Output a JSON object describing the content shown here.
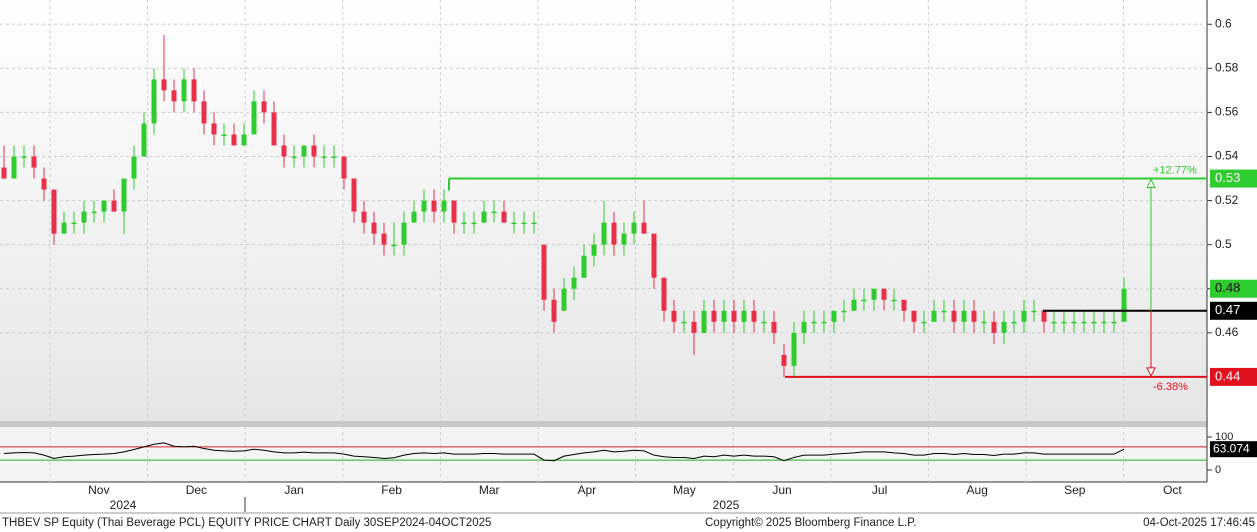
{
  "chart_data": {
    "type": "candlestick",
    "title": "THBEV SP Equity (Thai Beverage PCL) EQUITY PRICE CHART Daily 30SEP2024-04OCT2025",
    "copyright": "Copyright© 2025 Bloomberg Finance L.P.",
    "timestamp": "04-Oct-2025 17:46:45",
    "months": [
      "Nov",
      "Dec",
      "Jan",
      "Feb",
      "Mar",
      "Apr",
      "May",
      "Jun",
      "Jul",
      "Aug",
      "Sep",
      "Oct"
    ],
    "years": [
      "2024",
      "2025"
    ],
    "open": [
      0.535,
      0.53,
      0.54,
      0.54,
      0.53,
      0.525,
      0.505,
      0.51,
      0.51,
      0.515,
      0.515,
      0.52,
      0.515,
      0.53,
      0.54,
      0.555,
      0.575,
      0.57,
      0.565,
      0.575,
      0.565,
      0.555,
      0.55,
      0.55,
      0.545,
      0.55,
      0.565,
      0.56,
      0.545,
      0.54,
      0.54,
      0.545,
      0.54,
      0.54,
      0.54,
      0.53,
      0.515,
      0.51,
      0.505,
      0.5,
      0.5,
      0.51,
      0.515,
      0.52,
      0.515,
      0.52,
      0.51,
      0.51,
      0.51,
      0.515,
      0.515,
      0.51,
      0.51,
      0.51,
      0.5,
      0.475,
      0.47,
      0.48,
      0.485,
      0.495,
      0.5,
      0.51,
      0.5,
      0.505,
      0.51,
      0.505,
      0.485,
      0.47,
      0.465,
      0.465,
      0.46,
      0.47,
      0.465,
      0.47,
      0.465,
      0.47,
      0.465,
      0.465,
      0.45,
      0.445,
      0.46,
      0.465,
      0.465,
      0.465,
      0.47,
      0.47,
      0.475,
      0.475,
      0.48,
      0.475,
      0.475,
      0.47,
      0.465,
      0.465,
      0.47,
      0.47,
      0.465,
      0.47,
      0.465,
      0.465,
      0.46,
      0.465,
      0.465,
      0.47,
      0.47,
      0.465,
      0.465,
      0.465,
      0.465,
      0.465,
      0.465,
      0.465,
      0.465
    ],
    "high": [
      0.545,
      0.545,
      0.545,
      0.545,
      0.535,
      0.525,
      0.515,
      0.515,
      0.52,
      0.52,
      0.52,
      0.525,
      0.53,
      0.545,
      0.56,
      0.58,
      0.595,
      0.575,
      0.58,
      0.58,
      0.57,
      0.56,
      0.555,
      0.555,
      0.555,
      0.57,
      0.57,
      0.565,
      0.55,
      0.545,
      0.545,
      0.55,
      0.545,
      0.545,
      0.54,
      0.53,
      0.52,
      0.515,
      0.51,
      0.51,
      0.515,
      0.52,
      0.525,
      0.525,
      0.525,
      0.52,
      0.515,
      0.515,
      0.52,
      0.52,
      0.52,
      0.515,
      0.515,
      0.515,
      0.5,
      0.48,
      0.485,
      0.49,
      0.5,
      0.505,
      0.52,
      0.515,
      0.51,
      0.515,
      0.52,
      0.505,
      0.485,
      0.475,
      0.47,
      0.47,
      0.475,
      0.475,
      0.475,
      0.475,
      0.475,
      0.475,
      0.47,
      0.47,
      0.455,
      0.465,
      0.47,
      0.47,
      0.47,
      0.47,
      0.475,
      0.48,
      0.48,
      0.48,
      0.48,
      0.48,
      0.475,
      0.47,
      0.47,
      0.475,
      0.475,
      0.475,
      0.475,
      0.475,
      0.47,
      0.47,
      0.47,
      0.47,
      0.475,
      0.475,
      0.47,
      0.47,
      0.47,
      0.47,
      0.47,
      0.47,
      0.47,
      0.47,
      0.485
    ],
    "low": [
      0.53,
      0.53,
      0.535,
      0.53,
      0.52,
      0.5,
      0.505,
      0.505,
      0.505,
      0.51,
      0.51,
      0.515,
      0.505,
      0.525,
      0.54,
      0.55,
      0.565,
      0.56,
      0.56,
      0.56,
      0.55,
      0.545,
      0.545,
      0.545,
      0.545,
      0.55,
      0.555,
      0.545,
      0.535,
      0.535,
      0.535,
      0.535,
      0.535,
      0.535,
      0.525,
      0.51,
      0.505,
      0.5,
      0.495,
      0.495,
      0.495,
      0.51,
      0.51,
      0.51,
      0.51,
      0.505,
      0.505,
      0.505,
      0.51,
      0.51,
      0.51,
      0.505,
      0.505,
      0.505,
      0.47,
      0.46,
      0.47,
      0.475,
      0.485,
      0.49,
      0.495,
      0.495,
      0.495,
      0.5,
      0.505,
      0.48,
      0.465,
      0.46,
      0.46,
      0.45,
      0.46,
      0.46,
      0.46,
      0.46,
      0.46,
      0.46,
      0.46,
      0.455,
      0.44,
      0.44,
      0.455,
      0.46,
      0.46,
      0.46,
      0.465,
      0.47,
      0.47,
      0.47,
      0.47,
      0.47,
      0.465,
      0.46,
      0.46,
      0.465,
      0.465,
      0.46,
      0.46,
      0.46,
      0.46,
      0.455,
      0.455,
      0.46,
      0.46,
      0.465,
      0.46,
      0.46,
      0.46,
      0.46,
      0.46,
      0.46,
      0.46,
      0.46,
      0.465
    ],
    "close": [
      0.53,
      0.54,
      0.54,
      0.535,
      0.525,
      0.505,
      0.51,
      0.51,
      0.515,
      0.515,
      0.52,
      0.515,
      0.53,
      0.54,
      0.555,
      0.575,
      0.57,
      0.565,
      0.575,
      0.565,
      0.555,
      0.55,
      0.55,
      0.545,
      0.55,
      0.565,
      0.56,
      0.545,
      0.54,
      0.54,
      0.545,
      0.54,
      0.54,
      0.54,
      0.53,
      0.515,
      0.51,
      0.505,
      0.5,
      0.5,
      0.51,
      0.515,
      0.52,
      0.515,
      0.52,
      0.51,
      0.51,
      0.51,
      0.515,
      0.515,
      0.51,
      0.51,
      0.51,
      0.51,
      0.475,
      0.465,
      0.48,
      0.485,
      0.495,
      0.5,
      0.51,
      0.5,
      0.505,
      0.51,
      0.505,
      0.485,
      0.47,
      0.465,
      0.465,
      0.46,
      0.47,
      0.465,
      0.47,
      0.465,
      0.47,
      0.465,
      0.465,
      0.46,
      0.445,
      0.46,
      0.465,
      0.465,
      0.465,
      0.47,
      0.47,
      0.475,
      0.475,
      0.48,
      0.475,
      0.475,
      0.47,
      0.465,
      0.465,
      0.47,
      0.47,
      0.465,
      0.47,
      0.465,
      0.465,
      0.46,
      0.465,
      0.465,
      0.47,
      0.47,
      0.465,
      0.465,
      0.465,
      0.465,
      0.465,
      0.465,
      0.465,
      0.465,
      0.48
    ],
    "up_color": "#2ecc2e",
    "down_color": "#e8304a",
    "ylim": [
      0.42,
      0.611
    ],
    "yticks": [
      0.46,
      0.48,
      0.5,
      0.52,
      0.54,
      0.56,
      0.58,
      0.6
    ],
    "last_price": {
      "value": 0.48,
      "color": "#2ecc2e"
    },
    "levels": [
      {
        "value": 0.53,
        "color": "#2ecc2e",
        "change": "+12.77%"
      },
      {
        "value": 0.47,
        "color": "#000000"
      },
      {
        "value": 0.44,
        "color": "#e0101e",
        "change": "-6.38%"
      }
    ],
    "rsi": {
      "values": [
        50,
        52,
        53,
        52,
        45,
        35,
        40,
        42,
        45,
        47,
        48,
        50,
        55,
        62,
        70,
        78,
        82,
        72,
        70,
        72,
        65,
        60,
        58,
        57,
        58,
        63,
        60,
        55,
        52,
        52,
        54,
        52,
        52,
        52,
        48,
        42,
        40,
        38,
        35,
        37,
        45,
        50,
        52,
        50,
        52,
        48,
        48,
        48,
        50,
        50,
        48,
        48,
        48,
        48,
        30,
        28,
        42,
        47,
        52,
        55,
        60,
        55,
        57,
        60,
        58,
        45,
        40,
        38,
        38,
        35,
        42,
        40,
        45,
        42,
        45,
        42,
        42,
        40,
        28,
        38,
        45,
        45,
        45,
        48,
        50,
        52,
        55,
        55,
        55,
        52,
        50,
        45,
        45,
        50,
        50,
        47,
        50,
        47,
        47,
        44,
        48,
        48,
        52,
        52,
        48,
        48,
        48,
        48,
        48,
        48,
        48,
        48,
        63.074
      ],
      "ylim": [
        0,
        100
      ],
      "yticks": [
        0,
        100
      ],
      "bands": [
        {
          "value": 70,
          "color": "#d42020"
        },
        {
          "value": 30,
          "color": "#22b022"
        }
      ]
    }
  }
}
